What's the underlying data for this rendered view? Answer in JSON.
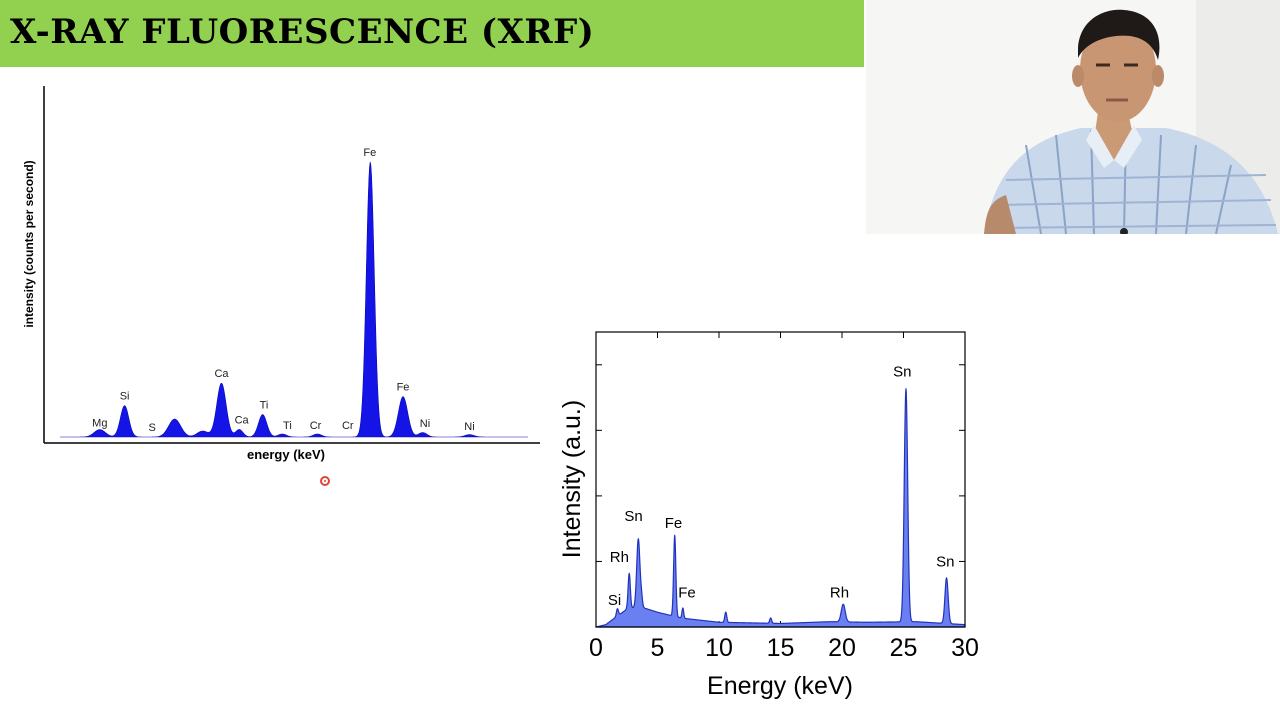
{
  "slide": {
    "title": "X-RAY FLUORESCENCE (XRF)"
  },
  "webcam": {
    "icon": "presenter-video-feed"
  },
  "colors": {
    "title_bar": "#92d050",
    "left_fill": "#1414e6",
    "right_fill": "#6a7ff0",
    "right_line": "#2233bb"
  },
  "chart_data": [
    {
      "type": "area",
      "title": "",
      "xlabel": "energy (keV)",
      "ylabel": "intensity (counts per second)",
      "ticks": "none",
      "grid": false,
      "axes": "left-and-bottom",
      "x_domain": [
        0,
        100
      ],
      "y_domain": [
        0,
        100
      ],
      "peaks": [
        {
          "x": 8.5,
          "height": 2.5,
          "width": 1.2
        },
        {
          "x": 13.8,
          "height": 10.5,
          "width": 0.9
        },
        {
          "x": 24.5,
          "height": 6,
          "width": 1.3
        },
        {
          "x": 30.5,
          "height": 2,
          "width": 1.2
        },
        {
          "x": 34.5,
          "height": 18,
          "width": 1.0
        },
        {
          "x": 38.3,
          "height": 2.5,
          "width": 0.8
        },
        {
          "x": 43.3,
          "height": 7.5,
          "width": 0.9
        },
        {
          "x": 47.5,
          "height": 1,
          "width": 0.9
        },
        {
          "x": 55,
          "height": 1,
          "width": 0.9
        },
        {
          "x": 66.3,
          "height": 92,
          "width": 0.85
        },
        {
          "x": 73.3,
          "height": 13.5,
          "width": 1.0
        },
        {
          "x": 77.5,
          "height": 1.5,
          "width": 0.9
        },
        {
          "x": 87.5,
          "height": 0.8,
          "width": 1.0
        }
      ],
      "labels": [
        {
          "text": "Mg",
          "x": 8.5,
          "y": 3.5
        },
        {
          "text": "Si",
          "x": 13.8,
          "y": 12.5
        },
        {
          "text": "S",
          "x": 19.7,
          "y": 2.0
        },
        {
          "text": "Ca",
          "x": 34.5,
          "y": 20
        },
        {
          "text": "Ca",
          "x": 38.8,
          "y": 4.5
        },
        {
          "text": "Ti",
          "x": 43.6,
          "y": 9.5
        },
        {
          "text": "Ti",
          "x": 48.6,
          "y": 2.7
        },
        {
          "text": "Cr",
          "x": 54.6,
          "y": 2.7
        },
        {
          "text": "Cr",
          "x": 61.5,
          "y": 2.7
        },
        {
          "text": "Fe",
          "x": 66.2,
          "y": 94
        },
        {
          "text": "Fe",
          "x": 73.3,
          "y": 15.5
        },
        {
          "text": "Ni",
          "x": 78.0,
          "y": 3.4
        },
        {
          "text": "Ni",
          "x": 87.5,
          "y": 2.3
        }
      ]
    },
    {
      "type": "area",
      "title": "",
      "xlabel": "Energy (keV)",
      "ylabel": "Intensity (a.u.)",
      "xlim": [
        0,
        30
      ],
      "ylim": [
        0,
        100
      ],
      "x_ticks": [
        0,
        5,
        10,
        15,
        20,
        25,
        30
      ],
      "x_tick_labels": [
        "0",
        "5",
        "10",
        "15",
        "20",
        "25",
        "30"
      ],
      "y_tick_labels": [],
      "grid": false,
      "baseline": [
        {
          "x": 0,
          "y": 0
        },
        {
          "x": 0.8,
          "y": 0.8
        },
        {
          "x": 1.5,
          "y": 3
        },
        {
          "x": 2.5,
          "y": 6
        },
        {
          "x": 3.5,
          "y": 7
        },
        {
          "x": 5,
          "y": 5
        },
        {
          "x": 7,
          "y": 3
        },
        {
          "x": 10,
          "y": 1.6
        },
        {
          "x": 15,
          "y": 1.2
        },
        {
          "x": 19,
          "y": 1.8
        },
        {
          "x": 22,
          "y": 1.6
        },
        {
          "x": 26,
          "y": 1.8
        },
        {
          "x": 30,
          "y": 0.8
        }
      ],
      "peaks": [
        {
          "x": 1.74,
          "height": 2.5,
          "width": 0.08
        },
        {
          "x": 2.7,
          "height": 12,
          "width": 0.09
        },
        {
          "x": 3.44,
          "height": 23,
          "width": 0.13
        },
        {
          "x": 3.7,
          "height": 3,
          "width": 0.08
        },
        {
          "x": 6.4,
          "height": 27.5,
          "width": 0.09
        },
        {
          "x": 7.06,
          "height": 3.5,
          "width": 0.07
        },
        {
          "x": 10.55,
          "height": 3.5,
          "width": 0.08
        },
        {
          "x": 14.2,
          "height": 1.8,
          "width": 0.08
        },
        {
          "x": 20.1,
          "height": 6,
          "width": 0.16
        },
        {
          "x": 25.2,
          "height": 79,
          "width": 0.14
        },
        {
          "x": 28.5,
          "height": 15.5,
          "width": 0.13
        }
      ],
      "labels": [
        {
          "text": "Si",
          "x": 1.5,
          "y": 7.5
        },
        {
          "text": "Rh",
          "x": 1.9,
          "y": 22
        },
        {
          "text": "Sn",
          "x": 3.05,
          "y": 36
        },
        {
          "text": "Fe",
          "x": 6.3,
          "y": 33.5
        },
        {
          "text": "Fe",
          "x": 7.4,
          "y": 10
        },
        {
          "text": "Rh",
          "x": 19.8,
          "y": 10
        },
        {
          "text": "Sn",
          "x": 24.9,
          "y": 85
        },
        {
          "text": "Sn",
          "x": 28.4,
          "y": 20.5
        }
      ]
    }
  ]
}
